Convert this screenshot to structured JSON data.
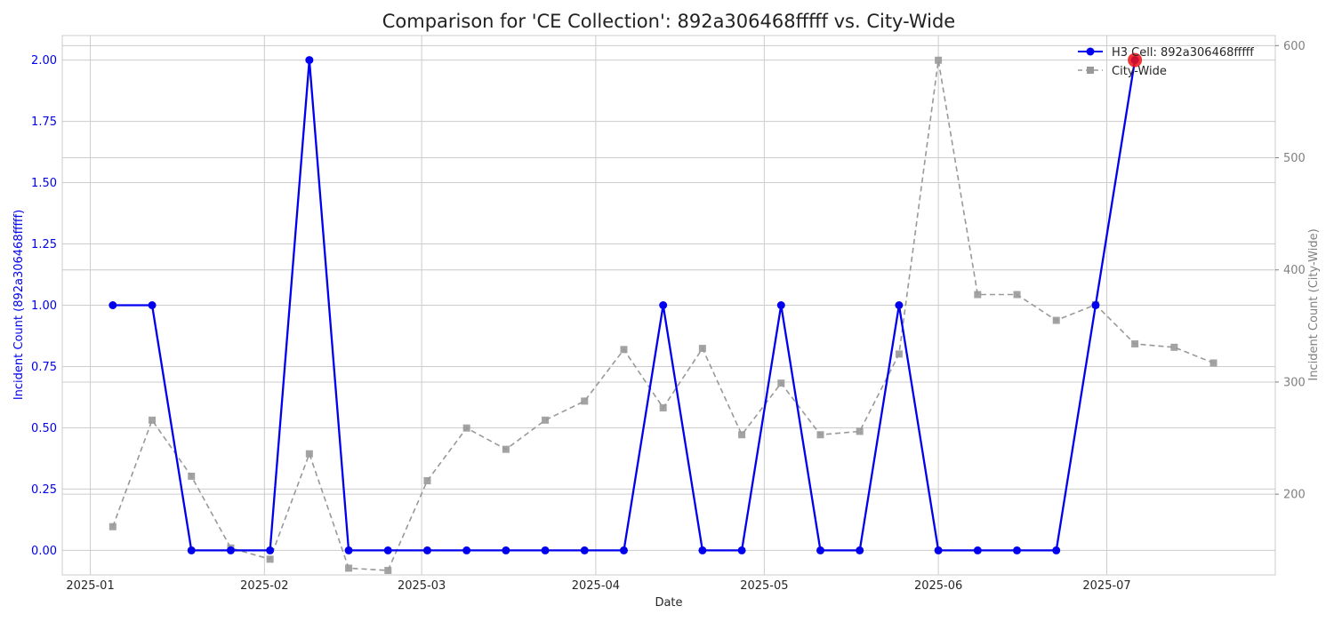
{
  "chart_data": {
    "type": "line",
    "title": "Comparison for 'CE Collection': 892a306468fffff vs. City-Wide",
    "xlabel": "Date",
    "ylabel_left": "Incident Count (892a306468fffff)",
    "ylabel_right": "Incident Count (City-Wide)",
    "x_tick_labels": [
      "2025-01",
      "2025-02",
      "2025-03",
      "2025-04",
      "2025-05",
      "2025-06",
      "2025-07"
    ],
    "x_tick_dates": [
      "2025-01-01",
      "2025-02-01",
      "2025-03-01",
      "2025-04-01",
      "2025-05-01",
      "2025-06-01",
      "2025-07-01"
    ],
    "xlim": [
      "2024-12-27",
      "2025-07-31"
    ],
    "ylim_left": [
      -0.1,
      2.1
    ],
    "ylim_right": [
      128,
      609
    ],
    "y_left_ticks": [
      "0.00",
      "0.25",
      "0.50",
      "0.75",
      "1.00",
      "1.25",
      "1.50",
      "1.75",
      "2.00"
    ],
    "y_right_ticks": [
      "200",
      "300",
      "400",
      "500",
      "600"
    ],
    "grid": true,
    "legend_position": "top-right",
    "colors": {
      "cell": "#0000ee",
      "city": "#999999",
      "highlight": "#ee1111",
      "left_axis": "#0000ee",
      "right_axis": "#808080"
    },
    "x": [
      "2025-01-05",
      "2025-01-12",
      "2025-01-19",
      "2025-01-26",
      "2025-02-02",
      "2025-02-09",
      "2025-02-16",
      "2025-02-23",
      "2025-03-02",
      "2025-03-09",
      "2025-03-16",
      "2025-03-23",
      "2025-03-30",
      "2025-04-06",
      "2025-04-13",
      "2025-04-20",
      "2025-04-27",
      "2025-05-04",
      "2025-05-11",
      "2025-05-18",
      "2025-05-25",
      "2025-06-01",
      "2025-06-08",
      "2025-06-15",
      "2025-06-22",
      "2025-06-29",
      "2025-07-06",
      "2025-07-13",
      "2025-07-20"
    ],
    "series": [
      {
        "name": "H3 Cell: 892a306468fffff",
        "axis": "left",
        "marker": "circle",
        "line": "solid",
        "x": [
          "2025-01-05",
          "2025-01-12",
          "2025-01-19",
          "2025-01-26",
          "2025-02-02",
          "2025-02-09",
          "2025-02-16",
          "2025-02-23",
          "2025-03-02",
          "2025-03-09",
          "2025-03-16",
          "2025-03-23",
          "2025-03-30",
          "2025-04-06",
          "2025-04-13",
          "2025-04-20",
          "2025-04-27",
          "2025-05-04",
          "2025-05-11",
          "2025-05-18",
          "2025-05-25",
          "2025-06-01",
          "2025-06-08",
          "2025-06-15",
          "2025-06-22",
          "2025-06-29",
          "2025-07-06"
        ],
        "values": [
          1,
          1,
          0,
          0,
          0,
          2,
          0,
          0,
          0,
          0,
          0,
          0,
          0,
          0,
          1,
          0,
          0,
          1,
          0,
          0,
          1,
          0,
          0,
          0,
          0,
          1,
          2
        ]
      },
      {
        "name": "City-Wide",
        "axis": "right",
        "marker": "square",
        "line": "dashed",
        "x": [
          "2025-01-05",
          "2025-01-12",
          "2025-01-19",
          "2025-01-26",
          "2025-02-02",
          "2025-02-09",
          "2025-02-16",
          "2025-02-23",
          "2025-03-02",
          "2025-03-09",
          "2025-03-16",
          "2025-03-23",
          "2025-03-30",
          "2025-04-06",
          "2025-04-13",
          "2025-04-20",
          "2025-04-27",
          "2025-05-04",
          "2025-05-11",
          "2025-05-18",
          "2025-05-25",
          "2025-06-01",
          "2025-06-08",
          "2025-06-15",
          "2025-06-22",
          "2025-06-29",
          "2025-07-06",
          "2025-07-13",
          "2025-07-20"
        ],
        "values": [
          171,
          266,
          216,
          152,
          142,
          236,
          134,
          132,
          212,
          259,
          240,
          266,
          283,
          329,
          277,
          330,
          253,
          299,
          253,
          256,
          325,
          587,
          378,
          378,
          355,
          369,
          334,
          331,
          317
        ]
      }
    ],
    "highlight_point": {
      "x": "2025-07-06",
      "value": 2
    }
  }
}
